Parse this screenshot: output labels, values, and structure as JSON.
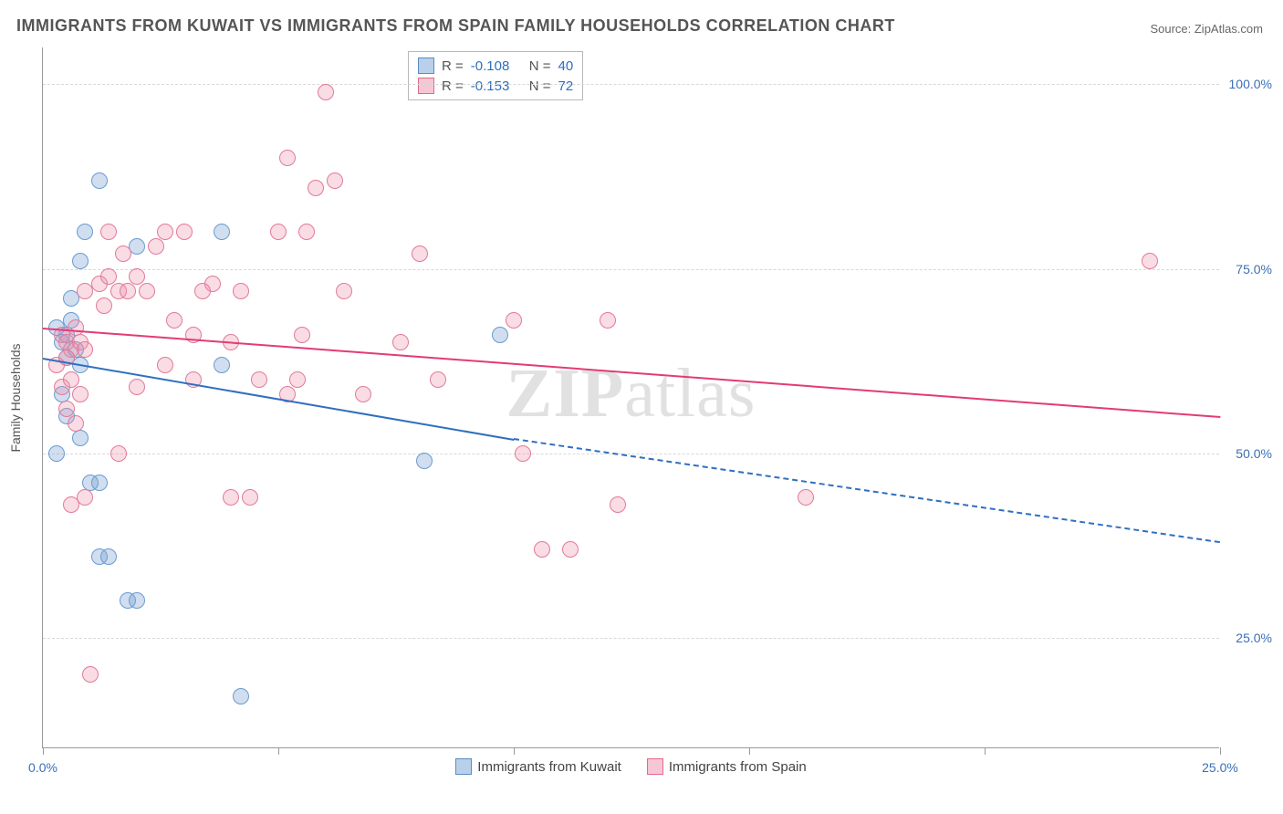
{
  "title": "IMMIGRANTS FROM KUWAIT VS IMMIGRANTS FROM SPAIN FAMILY HOUSEHOLDS CORRELATION CHART",
  "source_label": "Source: ",
  "source_value": "ZipAtlas.com",
  "watermark": "ZIPatlas",
  "chart": {
    "type": "scatter",
    "background_color": "#ffffff",
    "grid_color": "#d8d8d8",
    "axis_color": "#9a9a9a",
    "tick_label_color": "#3b6fb6",
    "axis_title_color": "#555555",
    "y_axis_title": "Family Households",
    "xlim": [
      0,
      25
    ],
    "ylim": [
      10,
      105
    ],
    "x_ticks": [
      0,
      5,
      10,
      15,
      20,
      25
    ],
    "x_tick_labels": [
      "0.0%",
      "",
      "",
      "",
      "",
      "25.0%"
    ],
    "y_gridlines": [
      25,
      50,
      75,
      100
    ],
    "y_tick_labels": [
      "25.0%",
      "50.0%",
      "75.0%",
      "100.0%"
    ],
    "marker_radius": 9,
    "marker_stroke_width": 1.5,
    "series": [
      {
        "name": "Immigrants from Kuwait",
        "color_fill": "rgba(120,160,210,0.35)",
        "color_stroke": "#6a9bd1",
        "swatch_fill": "#b9d0eb",
        "swatch_stroke": "#5a8bc4",
        "R": "-0.108",
        "N": "40",
        "trend": {
          "x1": 0,
          "y1": 63,
          "x2": 10,
          "y2": 52,
          "x2_ext": 25,
          "y2_ext": 38,
          "color": "#2f6fc0",
          "width": 2
        },
        "points": [
          [
            0.3,
            67
          ],
          [
            0.4,
            65
          ],
          [
            0.5,
            66
          ],
          [
            0.6,
            68
          ],
          [
            0.7,
            64
          ],
          [
            0.5,
            63
          ],
          [
            0.8,
            62
          ],
          [
            0.4,
            58
          ],
          [
            1.2,
            87
          ],
          [
            2.0,
            78
          ],
          [
            3.8,
            80
          ],
          [
            0.9,
            80
          ],
          [
            0.8,
            76
          ],
          [
            0.6,
            71
          ],
          [
            0.5,
            55
          ],
          [
            0.8,
            52
          ],
          [
            0.3,
            50
          ],
          [
            1.0,
            46
          ],
          [
            1.2,
            46
          ],
          [
            1.2,
            36
          ],
          [
            1.4,
            36
          ],
          [
            1.8,
            30
          ],
          [
            2.0,
            30
          ],
          [
            4.2,
            17
          ],
          [
            8.1,
            49
          ],
          [
            9.7,
            66
          ],
          [
            3.8,
            62
          ]
        ]
      },
      {
        "name": "Immigrants from Spain",
        "color_fill": "rgba(235,140,165,0.30)",
        "color_stroke": "#e27a9a",
        "swatch_fill": "#f6c6d4",
        "swatch_stroke": "#e06a8e",
        "R": "-0.153",
        "N": "72",
        "trend": {
          "x1": 0,
          "y1": 67,
          "x2": 25,
          "y2": 55,
          "color": "#e23b78",
          "width": 2
        },
        "points": [
          [
            0.4,
            66
          ],
          [
            0.5,
            65
          ],
          [
            0.6,
            64
          ],
          [
            0.7,
            67
          ],
          [
            0.8,
            65
          ],
          [
            0.5,
            63
          ],
          [
            0.3,
            62
          ],
          [
            0.9,
            64
          ],
          [
            0.4,
            59
          ],
          [
            0.6,
            60
          ],
          [
            0.8,
            58
          ],
          [
            0.5,
            56
          ],
          [
            0.7,
            54
          ],
          [
            1.2,
            73
          ],
          [
            1.4,
            74
          ],
          [
            1.6,
            72
          ],
          [
            1.3,
            70
          ],
          [
            1.8,
            72
          ],
          [
            2.0,
            74
          ],
          [
            1.7,
            77
          ],
          [
            2.2,
            72
          ],
          [
            2.6,
            80
          ],
          [
            2.8,
            68
          ],
          [
            3.0,
            80
          ],
          [
            3.2,
            66
          ],
          [
            3.6,
            73
          ],
          [
            4.0,
            65
          ],
          [
            4.2,
            72
          ],
          [
            4.6,
            60
          ],
          [
            5.0,
            80
          ],
          [
            5.2,
            90
          ],
          [
            5.6,
            80
          ],
          [
            5.8,
            86
          ],
          [
            5.5,
            66
          ],
          [
            5.4,
            60
          ],
          [
            5.2,
            58
          ],
          [
            6.0,
            99
          ],
          [
            6.2,
            87
          ],
          [
            6.4,
            72
          ],
          [
            6.8,
            58
          ],
          [
            7.6,
            65
          ],
          [
            8.0,
            77
          ],
          [
            8.4,
            60
          ],
          [
            10.0,
            68
          ],
          [
            10.2,
            50
          ],
          [
            10.6,
            37
          ],
          [
            11.2,
            37
          ],
          [
            12.2,
            43
          ],
          [
            12.0,
            68
          ],
          [
            16.2,
            44
          ],
          [
            23.5,
            76
          ],
          [
            1.4,
            80
          ],
          [
            2.4,
            78
          ],
          [
            0.9,
            72
          ],
          [
            2.6,
            62
          ],
          [
            3.4,
            72
          ],
          [
            3.2,
            60
          ],
          [
            4.4,
            44
          ],
          [
            2.0,
            59
          ],
          [
            0.9,
            44
          ],
          [
            0.6,
            43
          ],
          [
            1.6,
            50
          ],
          [
            4.0,
            44
          ],
          [
            1.0,
            20
          ]
        ]
      }
    ],
    "legend_top": {
      "R_label": "R =",
      "N_label": "N =",
      "value_color": "#2f6fc0",
      "label_color": "#555555"
    },
    "legend_bottom_text_color": "#444444"
  }
}
